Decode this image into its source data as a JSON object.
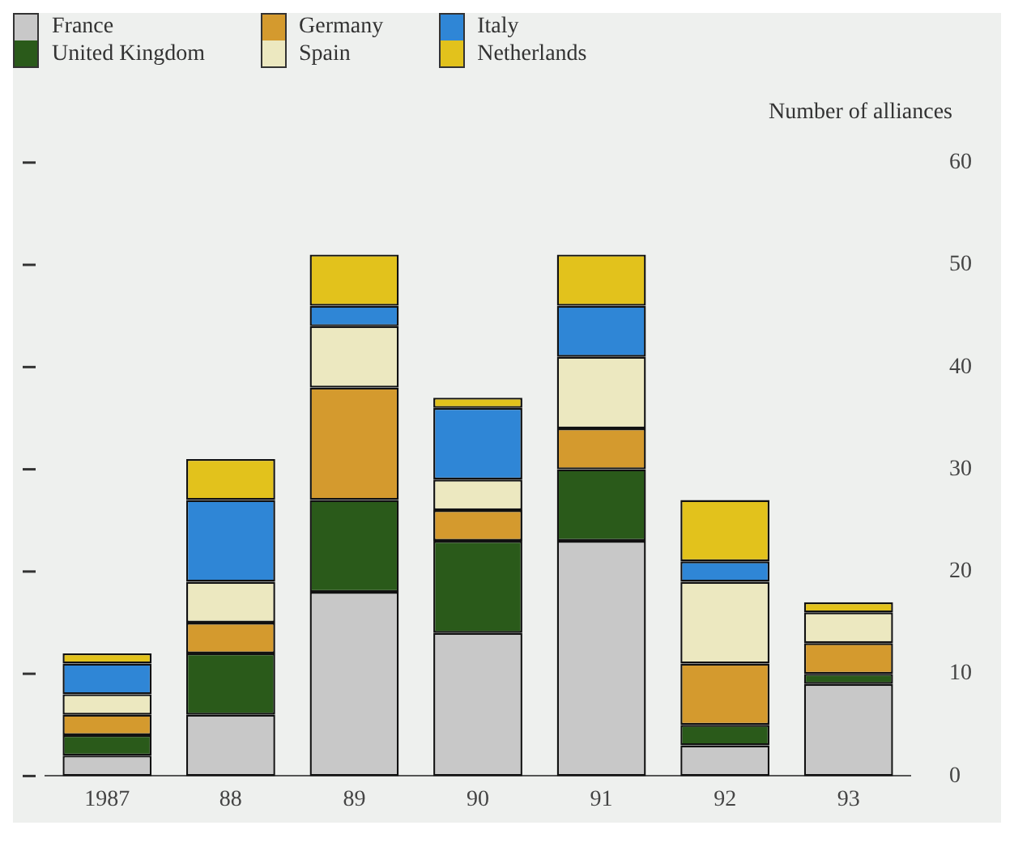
{
  "chart_data": {
    "type": "bar",
    "stacked": true,
    "ylabel": "Number of alliances",
    "categories": [
      "1987",
      "88",
      "89",
      "90",
      "91",
      "92",
      "93"
    ],
    "series": [
      {
        "name": "France",
        "color": "#c8c8c8",
        "values": [
          2,
          6,
          18,
          14,
          23,
          3,
          9
        ]
      },
      {
        "name": "United Kingdom",
        "color": "#2a5a1a",
        "values": [
          2,
          6,
          9,
          9,
          7,
          2,
          1
        ]
      },
      {
        "name": "Germany",
        "color": "#d49a2e",
        "values": [
          2,
          3,
          11,
          3,
          4,
          6,
          3
        ]
      },
      {
        "name": "Spain",
        "color": "#ece8c0",
        "values": [
          2,
          4,
          6,
          3,
          7,
          8,
          3
        ]
      },
      {
        "name": "Italy",
        "color": "#2f86d6",
        "values": [
          3,
          8,
          2,
          7,
          5,
          2,
          0
        ]
      },
      {
        "name": "Netherlands",
        "color": "#e2c21c",
        "values": [
          1,
          4,
          5,
          1,
          5,
          6,
          1
        ]
      }
    ],
    "ylim": [
      0,
      60
    ],
    "yticks": [
      0,
      10,
      20,
      30,
      40,
      50,
      60
    ],
    "grid": false,
    "legend": "top left"
  }
}
